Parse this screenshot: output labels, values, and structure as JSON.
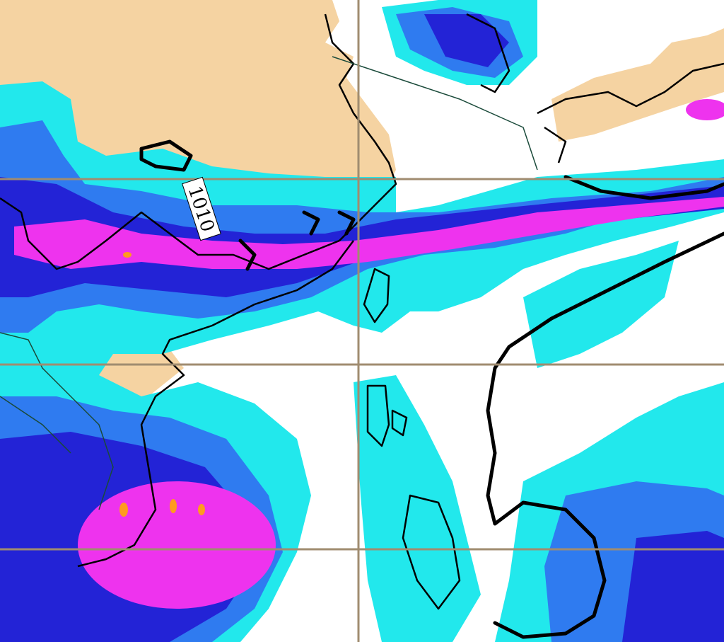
{
  "contour_label": "1010"
}
